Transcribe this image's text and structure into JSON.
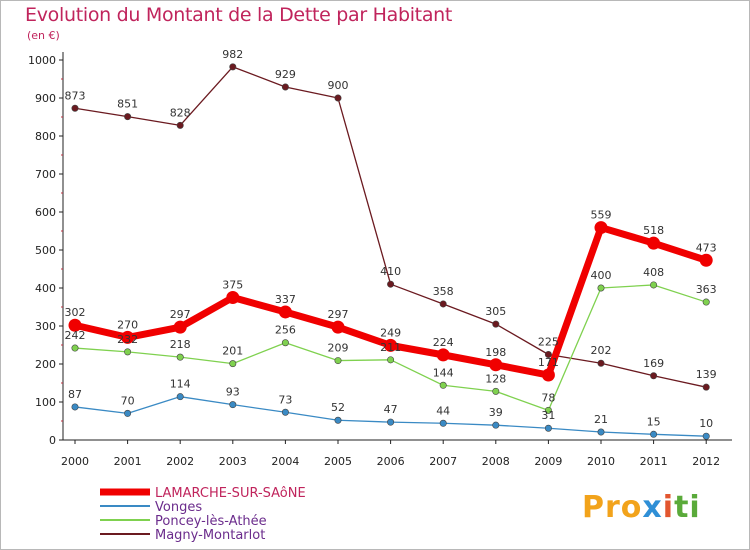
{
  "header": {
    "title": "Evolution du Montant de la Dette par Habitant",
    "subtitle": "(en €)"
  },
  "logo": {
    "parts": [
      "Pro",
      "x",
      "i",
      "ti"
    ]
  },
  "chart_data": {
    "type": "line",
    "title": "Evolution du Montant de la Dette par Habitant",
    "subtitle": "(en €)",
    "xlabel": "",
    "ylabel": "",
    "x": [
      "2000",
      "2001",
      "2002",
      "2003",
      "2004",
      "2005",
      "2006",
      "2007",
      "2008",
      "2009",
      "2010",
      "2011",
      "2012"
    ],
    "ylim": [
      0,
      1000
    ],
    "yticks": [
      "0",
      "100",
      "200",
      "300",
      "400",
      "500",
      "600",
      "700",
      "800",
      "900",
      "1000"
    ],
    "grid": false,
    "legend_position": "bottom-left",
    "series": [
      {
        "name": "LAMARCHE-SUR-SAôNE",
        "color": "#f00000",
        "values": [
          302,
          270,
          297,
          375,
          337,
          297,
          249,
          224,
          198,
          171,
          559,
          518,
          473
        ]
      },
      {
        "name": "Vonges",
        "color": "#3a8ac4",
        "values": [
          87,
          70,
          114,
          93,
          73,
          52,
          47,
          44,
          39,
          31,
          21,
          15,
          10
        ]
      },
      {
        "name": "Poncey-lès-Athée",
        "color": "#7fd14f",
        "values": [
          242,
          232,
          218,
          201,
          256,
          209,
          211,
          144,
          128,
          78,
          400,
          408,
          363
        ]
      },
      {
        "name": "Magny-Montarlot",
        "color": "#6b1a20",
        "values": [
          873,
          851,
          828,
          982,
          929,
          900,
          410,
          358,
          305,
          225,
          202,
          169,
          139
        ]
      }
    ],
    "data_labels": [
      {
        "series": 0,
        "labels": [
          "302",
          "270",
          "297",
          "375",
          "337",
          "297",
          "249",
          "224",
          "198",
          "171",
          "559",
          "518",
          "473"
        ]
      },
      {
        "series": 1,
        "labels": [
          "87",
          "70",
          "114",
          "93",
          "73",
          "52",
          "47",
          "44",
          "39",
          "31",
          "21",
          "15",
          "10"
        ]
      },
      {
        "series": 2,
        "labels": [
          "242",
          "232",
          "218",
          "201",
          "256",
          "209",
          "211",
          "144",
          "128",
          "78",
          "400",
          "408",
          "363"
        ]
      },
      {
        "series": 3,
        "labels": [
          "873",
          "851",
          "828",
          "982",
          "929",
          "900",
          "410",
          "358",
          "305",
          "225",
          "202",
          "169",
          "139"
        ]
      }
    ]
  }
}
